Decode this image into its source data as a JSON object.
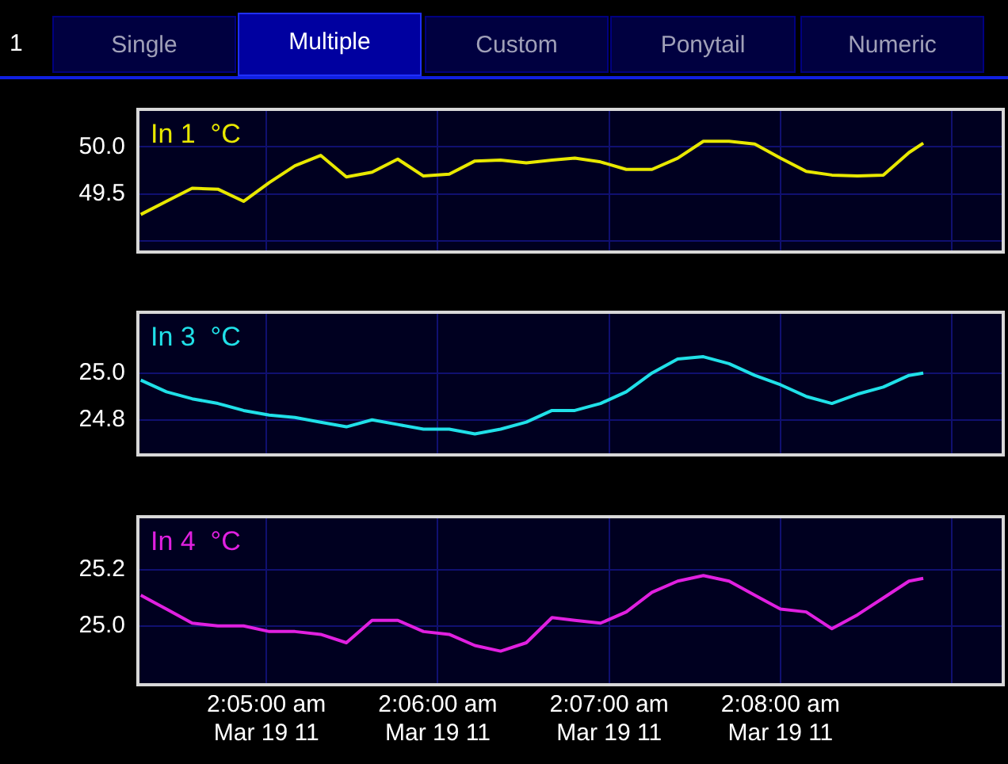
{
  "chart_data": [
    {
      "type": "line",
      "title": "In 1  °C",
      "annotations": [
        "1",
        "Single",
        "Multiple",
        "Custom",
        "Ponytail",
        "Numeric"
      ],
      "x": [
        "--03-19T02:04:16",
        "--03-19T02:04:25",
        "--03-19T02:04:34",
        "--03-19T02:04:43",
        "--03-19T02:04:52",
        "--03-19T02:05:01",
        "--03-19T02:05:10",
        "--03-19T02:05:19",
        "--03-19T02:05:28",
        "--03-19T02:05:37",
        "--03-19T02:05:46",
        "--03-19T02:05:55",
        "--03-19T02:06:04",
        "--03-19T02:06:13",
        "--03-19T02:06:22",
        "--03-19T02:06:31",
        "--03-19T02:06:40",
        "--03-19T02:06:48",
        "--03-19T02:06:57",
        "--03-19T02:07:06",
        "--03-19T02:07:15",
        "--03-19T02:07:24",
        "--03-19T02:07:33",
        "--03-19T02:07:42",
        "--03-19T02:07:51",
        "--03-19T02:08:00",
        "--03-19T02:08:09",
        "--03-19T02:08:18",
        "--03-19T02:08:27",
        "--03-19T02:08:36",
        "--03-19T02:08:45",
        "--03-19T02:08:50"
      ],
      "series": [
        {
          "color": "#e8e800",
          "values": [
            49.28,
            49.42,
            49.56,
            49.55,
            49.42,
            49.62,
            49.8,
            49.91,
            49.68,
            49.73,
            49.87,
            49.69,
            49.71,
            49.85,
            49.86,
            49.83,
            49.86,
            49.88,
            49.84,
            49.76,
            49.76,
            49.88,
            50.06,
            50.06,
            50.03,
            49.88,
            49.74,
            49.7,
            49.69,
            49.7,
            49.94,
            50.04
          ]
        }
      ],
      "xlim": [
        "--03-19T02:04:15",
        "--03-19T02:09:18"
      ],
      "xticks": [
        {
          "value": "--03-19T02:05",
          "label": null
        },
        {
          "value": "--03-19T02:06",
          "label": null
        },
        {
          "value": "--03-19T02:07",
          "label": null
        },
        {
          "value": "--03-19T02:08",
          "label": null
        },
        {
          "value": "--03-19T02:09",
          "label": null
        }
      ],
      "ylim": [
        48.88,
        50.4
      ],
      "yticks": [
        {
          "value": 49.0,
          "label": null
        },
        {
          "value": 49.5,
          "label": "49.5"
        },
        {
          "value": 50.0,
          "label": "50.0"
        }
      ],
      "grid": true,
      "tick_labels": "y"
    },
    {
      "type": "line",
      "title": "In 3  °C",
      "x": [
        "--03-19T02:04:16",
        "--03-19T02:04:25",
        "--03-19T02:04:34",
        "--03-19T02:04:43",
        "--03-19T02:04:52",
        "--03-19T02:05:01",
        "--03-19T02:05:10",
        "--03-19T02:05:19",
        "--03-19T02:05:28",
        "--03-19T02:05:37",
        "--03-19T02:05:46",
        "--03-19T02:05:55",
        "--03-19T02:06:04",
        "--03-19T02:06:13",
        "--03-19T02:06:22",
        "--03-19T02:06:31",
        "--03-19T02:06:40",
        "--03-19T02:06:48",
        "--03-19T02:06:57",
        "--03-19T02:07:06",
        "--03-19T02:07:15",
        "--03-19T02:07:24",
        "--03-19T02:07:33",
        "--03-19T02:07:42",
        "--03-19T02:07:51",
        "--03-19T02:08:00",
        "--03-19T02:08:09",
        "--03-19T02:08:18",
        "--03-19T02:08:27",
        "--03-19T02:08:36",
        "--03-19T02:08:45",
        "--03-19T02:08:50"
      ],
      "series": [
        {
          "color": "#20e0e8",
          "values": [
            24.97,
            24.92,
            24.89,
            24.87,
            24.84,
            24.82,
            24.81,
            24.79,
            24.77,
            24.8,
            24.78,
            24.76,
            24.76,
            24.74,
            24.76,
            24.79,
            24.84,
            24.84,
            24.87,
            24.92,
            25.0,
            25.06,
            25.07,
            25.04,
            24.99,
            24.95,
            24.9,
            24.87,
            24.91,
            24.94,
            24.99,
            25.0
          ]
        }
      ],
      "xlim": [
        "--03-19T02:04:15",
        "--03-19T02:09:18"
      ],
      "xticks": [
        {
          "value": "--03-19T02:05",
          "label": null
        },
        {
          "value": "--03-19T02:06",
          "label": null
        },
        {
          "value": "--03-19T02:07",
          "label": null
        },
        {
          "value": "--03-19T02:08",
          "label": null
        },
        {
          "value": "--03-19T02:09",
          "label": null
        }
      ],
      "ylim": [
        24.65,
        25.26
      ],
      "yticks": [
        {
          "value": 24.8,
          "label": "24.8"
        },
        {
          "value": 25.0,
          "label": "25.0"
        }
      ],
      "grid": true,
      "tick_labels": "y"
    },
    {
      "type": "line",
      "title": "In 4  °C",
      "x": [
        "--03-19T02:04:16",
        "--03-19T02:04:25",
        "--03-19T02:04:34",
        "--03-19T02:04:43",
        "--03-19T02:04:52",
        "--03-19T02:05:01",
        "--03-19T02:05:10",
        "--03-19T02:05:19",
        "--03-19T02:05:28",
        "--03-19T02:05:37",
        "--03-19T02:05:46",
        "--03-19T02:05:55",
        "--03-19T02:06:04",
        "--03-19T02:06:13",
        "--03-19T02:06:22",
        "--03-19T02:06:31",
        "--03-19T02:06:40",
        "--03-19T02:06:48",
        "--03-19T02:06:57",
        "--03-19T02:07:06",
        "--03-19T02:07:15",
        "--03-19T02:07:24",
        "--03-19T02:07:33",
        "--03-19T02:07:42",
        "--03-19T02:07:51",
        "--03-19T02:08:00",
        "--03-19T02:08:09",
        "--03-19T02:08:18",
        "--03-19T02:08:27",
        "--03-19T02:08:36",
        "--03-19T02:08:45",
        "--03-19T02:08:50"
      ],
      "series": [
        {
          "color": "#e020e0",
          "values": [
            25.11,
            25.06,
            25.01,
            25.0,
            25.0,
            24.98,
            24.98,
            24.97,
            24.94,
            25.02,
            25.02,
            24.98,
            24.97,
            24.93,
            24.91,
            24.94,
            25.03,
            25.02,
            25.01,
            25.05,
            25.12,
            25.16,
            25.18,
            25.16,
            25.11,
            25.06,
            25.05,
            24.99,
            25.04,
            25.1,
            25.16,
            25.17
          ]
        }
      ],
      "xlim": [
        "--03-19T02:04:15",
        "--03-19T02:09:18"
      ],
      "xticks": [
        {
          "value": "--03-19T02:05",
          "label": "2:05:00 am\nMar 19 11"
        },
        {
          "value": "--03-19T02:06",
          "label": "2:06:00 am\nMar 19 11"
        },
        {
          "value": "--03-19T02:07",
          "label": "2:07:00 am\nMar 19 11"
        },
        {
          "value": "--03-19T02:08",
          "label": "2:08:00 am\nMar 19 11"
        },
        {
          "value": "--03-19T02:09",
          "label": null
        }
      ],
      "ylim": [
        24.79,
        25.39
      ],
      "yticks": [
        {
          "value": 25.0,
          "label": "25.0"
        },
        {
          "value": 25.2,
          "label": "25.2"
        }
      ],
      "grid": true
    }
  ]
}
